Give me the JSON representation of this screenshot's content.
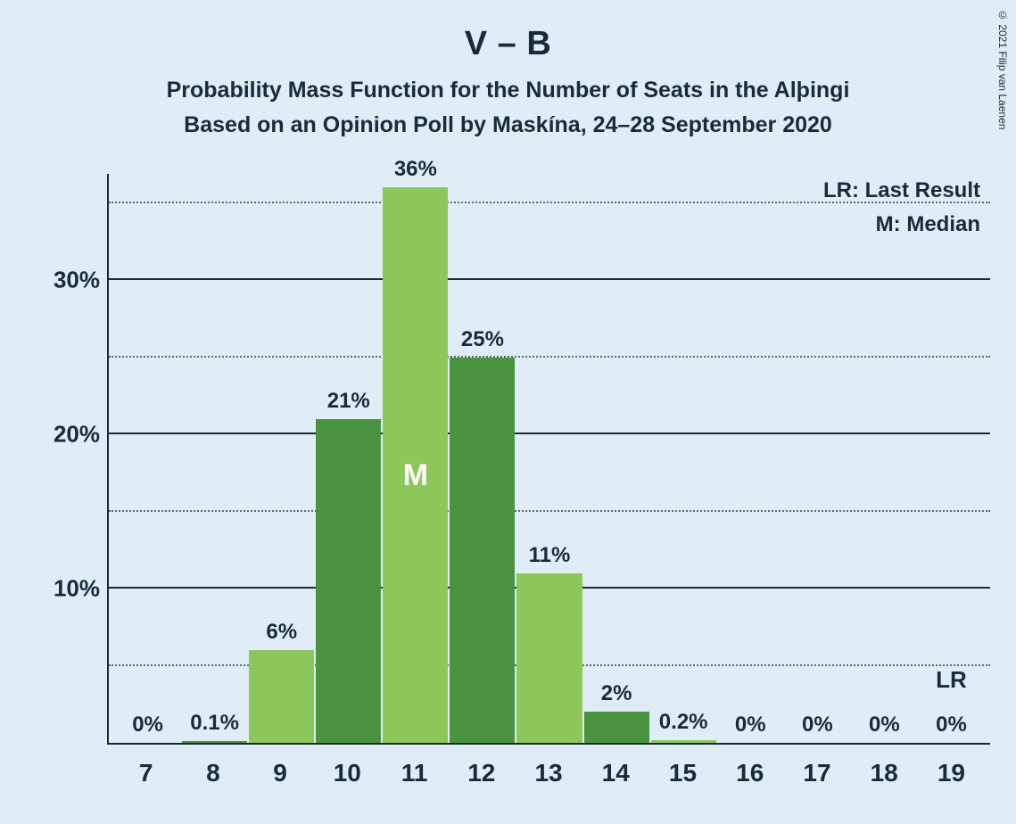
{
  "copyright": "© 2021 Filip van Laenen",
  "title": "V – B",
  "subtitle1": "Probability Mass Function for the Number of Seats in the Alþingi",
  "subtitle2": "Based on an Opinion Poll by Maskína, 24–28 September 2020",
  "legend": {
    "lr": "LR: Last Result",
    "m": "M: Median"
  },
  "chart": {
    "type": "bar",
    "background_color": "#e0edf7",
    "text_color": "#1a2a3a",
    "axis_color": "#1a2a3a",
    "grid_minor_color": "#5a6a7a",
    "ylim": [
      0,
      37
    ],
    "y_major_ticks": [
      10,
      20,
      30
    ],
    "y_minor_ticks": [
      5,
      15,
      25,
      35
    ],
    "y_tick_labels": [
      "10%",
      "20%",
      "30%"
    ],
    "categories": [
      "7",
      "8",
      "9",
      "10",
      "11",
      "12",
      "13",
      "14",
      "15",
      "16",
      "17",
      "18",
      "19"
    ],
    "values": [
      0,
      0.1,
      6,
      21,
      36,
      25,
      11,
      2,
      0.2,
      0,
      0,
      0,
      0
    ],
    "value_labels": [
      "0%",
      "0.1%",
      "6%",
      "21%",
      "36%",
      "25%",
      "11%",
      "2%",
      "0.2%",
      "0%",
      "0%",
      "0%",
      "0%"
    ],
    "bar_colors": [
      "#8cc759",
      "#4a9440",
      "#8cc759",
      "#4a9440",
      "#8cc759",
      "#4a9440",
      "#8cc759",
      "#4a9440",
      "#8cc759",
      "#4a9440",
      "#8cc759",
      "#4a9440",
      "#8cc759"
    ],
    "median_index": 4,
    "median_label": "M",
    "lr_index": 12,
    "lr_label": "LR",
    "title_fontsize": 38,
    "subtitle_fontsize": 25,
    "axis_label_fontsize": 26,
    "bar_label_fontsize": 24
  }
}
